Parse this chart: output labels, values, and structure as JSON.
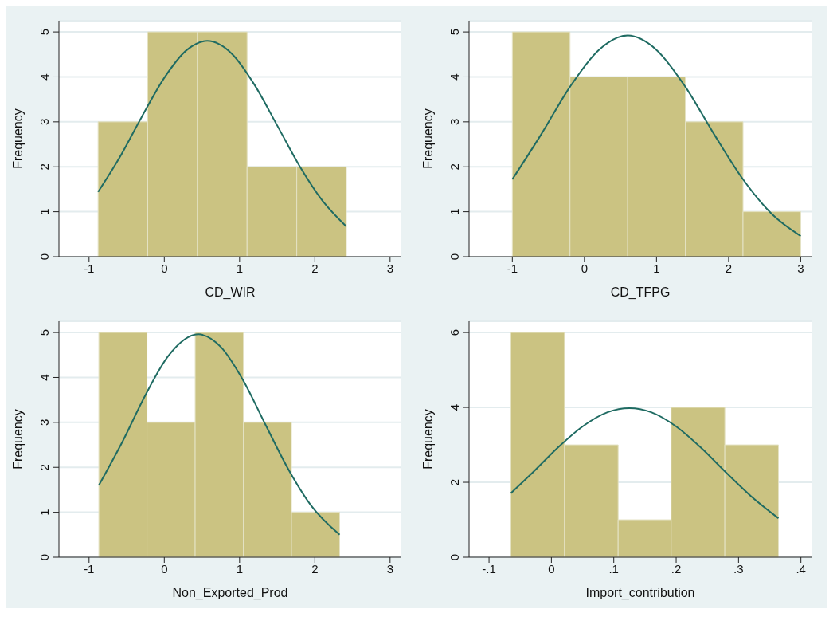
{
  "chart_data": [
    {
      "type": "histogram",
      "xlabel": "CD_WIR",
      "ylabel": "Frequency",
      "bins": [
        -0.88,
        -0.22,
        0.44,
        1.1,
        1.76,
        2.42
      ],
      "values": [
        3,
        5,
        5,
        2,
        2
      ],
      "color": "#cbc382",
      "xlim": [
        -1.4,
        3.15
      ],
      "xticks": [
        -1,
        0,
        1,
        2,
        3
      ],
      "ylim": [
        0,
        5.25
      ],
      "yticks": [
        0,
        1,
        2,
        3,
        4,
        5
      ],
      "grid": "y",
      "series": [
        {
          "type": "line",
          "color": "#1f6b62",
          "x": [
            -0.88,
            -0.6,
            -0.3,
            0,
            0.3,
            0.57,
            0.9,
            1.2,
            1.5,
            1.8,
            2.1,
            2.42
          ],
          "values": [
            1.44,
            2.19,
            3.11,
            3.98,
            4.6,
            4.8,
            4.51,
            3.82,
            2.92,
            2.01,
            1.25,
            0.67
          ]
        }
      ]
    },
    {
      "type": "histogram",
      "xlabel": "CD_TFPG",
      "ylabel": "Frequency",
      "bins": [
        -1,
        -0.2,
        0.6,
        1.4,
        2.2,
        3
      ],
      "values": [
        5,
        4,
        4,
        3,
        1
      ],
      "color": "#cbc382",
      "xlim": [
        -1.6,
        3.15
      ],
      "xticks": [
        -1,
        0,
        1,
        2,
        3
      ],
      "ylim": [
        0,
        5.25
      ],
      "yticks": [
        0,
        1,
        2,
        3,
        4,
        5
      ],
      "grid": "y",
      "series": [
        {
          "type": "line",
          "color": "#1f6b62",
          "x": [
            -1,
            -0.6,
            -0.2,
            0.2,
            0.6,
            1,
            1.4,
            1.8,
            2.2,
            2.6,
            3
          ],
          "values": [
            1.72,
            2.72,
            3.78,
            4.6,
            4.92,
            4.6,
            3.78,
            2.72,
            1.72,
            0.95,
            0.46
          ]
        }
      ]
    },
    {
      "type": "histogram",
      "xlabel": "Non_Exported_Prod",
      "ylabel": "Frequency",
      "bins": [
        -0.87,
        -0.23,
        0.41,
        1.05,
        1.69,
        2.33
      ],
      "values": [
        5,
        3,
        5,
        3,
        1
      ],
      "color": "#cbc382",
      "xlim": [
        -1.4,
        3.15
      ],
      "xticks": [
        -1,
        0,
        1,
        2,
        3
      ],
      "ylim": [
        0,
        5.25
      ],
      "yticks": [
        0,
        1,
        2,
        3,
        4,
        5
      ],
      "grid": "y",
      "series": [
        {
          "type": "line",
          "color": "#1f6b62",
          "x": [
            -0.87,
            -0.55,
            -0.25,
            0.05,
            0.45,
            0.75,
            1.05,
            1.35,
            1.65,
            1.95,
            2.33
          ],
          "values": [
            1.6,
            2.59,
            3.61,
            4.47,
            4.96,
            4.68,
            3.93,
            2.93,
            1.95,
            1.15,
            0.5
          ]
        }
      ]
    },
    {
      "type": "histogram",
      "xlabel": "Import_contribution",
      "ylabel": "Frequency",
      "bins": [
        -0.065,
        0.021,
        0.107,
        0.192,
        0.278,
        0.364
      ],
      "values": [
        6,
        3,
        1,
        4,
        3
      ],
      "color": "#cbc382",
      "xlim": [
        -0.132,
        0.417
      ],
      "xticks": [
        {
          "value": -0.1,
          "label": "-.1"
        },
        0,
        {
          "value": 0.1,
          "label": ".1"
        },
        {
          "value": 0.2,
          "label": ".2"
        },
        {
          "value": 0.3,
          "label": ".3"
        },
        {
          "value": 0.4,
          "label": ".4"
        }
      ],
      "ylim": [
        0,
        6.3
      ],
      "yticks": [
        0,
        2,
        4,
        6
      ],
      "grid": "y",
      "series": [
        {
          "type": "line",
          "color": "#1f6b62",
          "x": [
            -0.065,
            -0.03,
            0.01,
            0.05,
            0.09,
            0.125,
            0.16,
            0.2,
            0.24,
            0.28,
            0.32,
            0.364
          ],
          "values": [
            1.71,
            2.26,
            2.92,
            3.49,
            3.87,
            3.98,
            3.87,
            3.49,
            2.92,
            2.26,
            1.63,
            1.04
          ]
        }
      ]
    }
  ]
}
